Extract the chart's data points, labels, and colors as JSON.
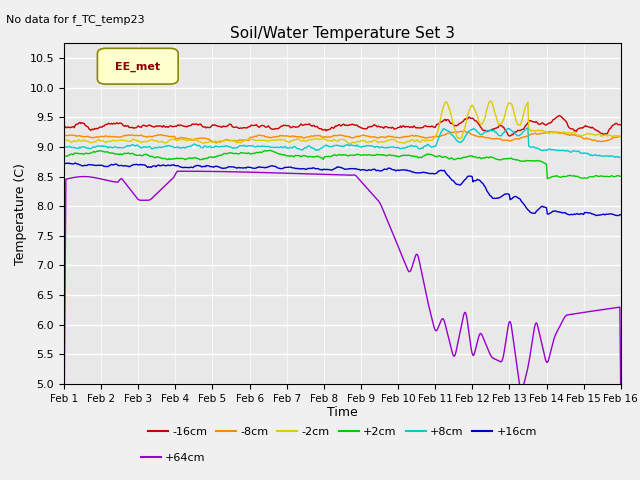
{
  "title": "Soil/Water Temperature Set 3",
  "xlabel": "Time",
  "ylabel": "Temperature (C)",
  "annotation_text": "No data for f_TC_temp23",
  "legend_box_text": "EE_met",
  "ylim": [
    5.0,
    10.75
  ],
  "yticks": [
    5.0,
    5.5,
    6.0,
    6.5,
    7.0,
    7.5,
    8.0,
    8.5,
    9.0,
    9.5,
    10.0,
    10.5
  ],
  "xtick_labels": [
    "Feb 1",
    "Feb 2",
    "Feb 3",
    "Feb 4",
    "Feb 5",
    "Feb 6",
    "Feb 7",
    "Feb 8",
    "Feb 9",
    "Feb 10",
    "Feb 11",
    "Feb 12",
    "Feb 13",
    "Feb 14",
    "Feb 15",
    "Feb 16"
  ],
  "n_pts": 600,
  "series_colors": [
    "#cc0000",
    "#ff8800",
    "#ddcc00",
    "#00cc00",
    "#00cccc",
    "#0000cc",
    "#9900cc"
  ],
  "series_labels": [
    "-16cm",
    "-8cm",
    "-2cm",
    "+2cm",
    "+8cm",
    "+16cm",
    "+64cm"
  ],
  "bg_color": "#e8e8e8",
  "grid_color": "#ffffff",
  "legend_box_color": "#ffffcc",
  "legend_box_edge": "#888800",
  "fig_bg": "#f0f0f0"
}
